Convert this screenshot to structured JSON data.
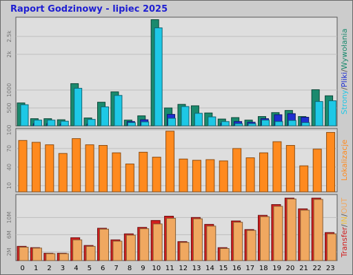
{
  "report": {
    "title": "Raport Godzinowy -  lipiec 2025"
  },
  "chart_data": [
    {
      "type": "bar",
      "name": "pages-files-hits",
      "categories": [
        "0",
        "1",
        "2",
        "3",
        "4",
        "5",
        "6",
        "7",
        "8",
        "9",
        "10",
        "11",
        "12",
        "13",
        "14",
        "15",
        "16",
        "17",
        "18",
        "19",
        "20",
        "21",
        "22",
        "23"
      ],
      "series": [
        {
          "name": "Wywołania",
          "color": "#1a8a6e",
          "values": [
            640,
            200,
            200,
            170,
            1180,
            220,
            660,
            950,
            160,
            280,
            2970,
            500,
            600,
            560,
            360,
            190,
            230,
            160,
            260,
            370,
            430,
            260,
            1010,
            840
          ]
        },
        {
          "name": "Pliki",
          "color": "#1f2fd0",
          "values": [
            0,
            60,
            60,
            50,
            0,
            50,
            0,
            0,
            120,
            170,
            0,
            320,
            0,
            0,
            0,
            70,
            120,
            100,
            200,
            310,
            340,
            240,
            0,
            0
          ]
        },
        {
          "name": "Strony",
          "color": "#1ec8e6",
          "values": [
            590,
            160,
            160,
            130,
            1050,
            180,
            530,
            850,
            90,
            110,
            2740,
            210,
            540,
            350,
            250,
            120,
            60,
            60,
            160,
            120,
            150,
            90,
            680,
            700
          ]
        }
      ],
      "yticks": [
        "500",
        "1000",
        "2k",
        "2.5k"
      ],
      "ylim": [
        0,
        3000
      ],
      "side_label": [
        "Strony",
        "/",
        "Pliki",
        "/",
        "Wywołania"
      ],
      "side_label_colors": [
        "#1ec8e6",
        "#555555",
        "#1f2fd0",
        "#555555",
        "#1a8a6e"
      ]
    },
    {
      "type": "bar",
      "name": "locations",
      "categories": [
        "0",
        "1",
        "2",
        "3",
        "4",
        "5",
        "6",
        "7",
        "8",
        "9",
        "10",
        "11",
        "12",
        "13",
        "14",
        "15",
        "16",
        "17",
        "18",
        "19",
        "20",
        "21",
        "22",
        "23"
      ],
      "series": [
        {
          "name": "Lokalizacje",
          "color": "#ff8a1e",
          "values": [
            83,
            80,
            76,
            62,
            86,
            76,
            75,
            63,
            45,
            64,
            56,
            98,
            53,
            51,
            52,
            50,
            70,
            55,
            63,
            81,
            75,
            42,
            69,
            96
          ]
        }
      ],
      "yticks": [
        "10",
        "40",
        "70",
        "100"
      ],
      "ylim": [
        0,
        100
      ],
      "side_label": [
        "Lokalizacje"
      ],
      "side_label_colors": [
        "#ff8a1e"
      ]
    },
    {
      "type": "bar",
      "name": "transfer",
      "categories": [
        "0",
        "1",
        "2",
        "3",
        "4",
        "5",
        "6",
        "7",
        "8",
        "9",
        "10",
        "11",
        "12",
        "13",
        "14",
        "15",
        "16",
        "17",
        "18",
        "19",
        "20",
        "21",
        "22",
        "23"
      ],
      "series": [
        {
          "name": "Transfer",
          "color": "#d21e1e",
          "values": [
            3.3,
            3.0,
            1.7,
            1.7,
            5.3,
            3.5,
            7.5,
            4.8,
            6.2,
            7.7,
            9.3,
            10.3,
            4.4,
            10.0,
            8.4,
            3.0,
            9.2,
            7.2,
            10.5,
            13.0,
            14.5,
            12.0,
            14.5,
            6.5
          ]
        },
        {
          "name": "OUT",
          "color": "#f0a860",
          "values": [
            3.1,
            2.9,
            1.6,
            1.6,
            4.8,
            3.3,
            7.3,
            4.5,
            5.9,
            7.4,
            8.5,
            9.8,
            4.2,
            9.7,
            8.0,
            2.8,
            8.9,
            7.0,
            10.2,
            12.6,
            14.3,
            11.7,
            14.2,
            6.2
          ]
        }
      ],
      "yticks": [
        "2M",
        "6M",
        "10M"
      ],
      "ylim": [
        0,
        15
      ],
      "side_label": [
        "Transfer",
        "/",
        "IN",
        "/",
        "OUT"
      ],
      "side_label_colors": [
        "#d21e1e",
        "#555555",
        "#f0c040",
        "#555555",
        "#f0a860"
      ]
    }
  ]
}
